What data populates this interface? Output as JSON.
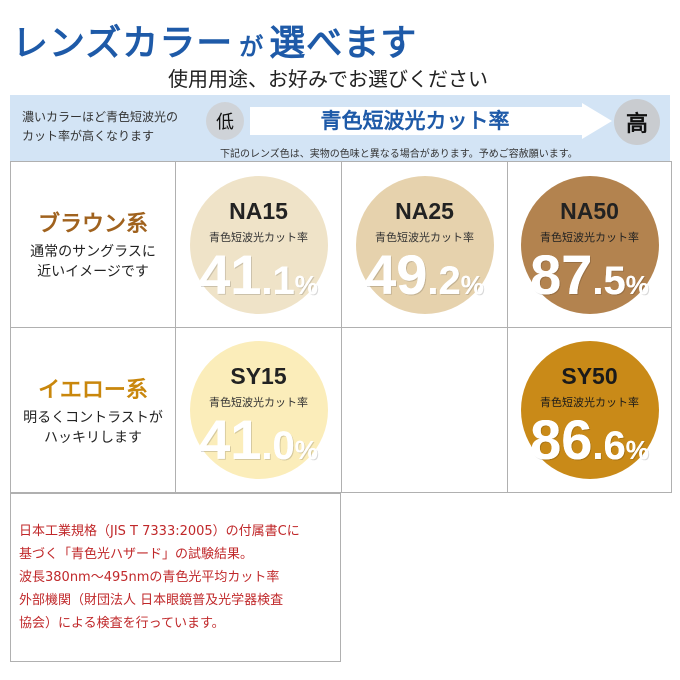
{
  "header": {
    "title_main": "レンズカラー",
    "title_particle": "が",
    "title_end": "選べます",
    "subtitle": "使用用途、お好みでお選びください"
  },
  "band": {
    "note_line1": "濃いカラーほど青色短波光の",
    "note_line2": "カット率が高くなります",
    "low_label": "低",
    "arrow_label": "青色短波光カット率",
    "high_label": "高",
    "disclaimer": "下記のレンズ色は、実物の色味と異なる場合があります。予めご容赦願います。"
  },
  "rows": [
    {
      "title": "ブラウン系",
      "title_color": "#a0621e",
      "desc_line1": "通常のサングラスに",
      "desc_line2": "近いイメージです",
      "lenses": [
        {
          "code": "NA15",
          "caption": "青色短波光カット率",
          "int": "41",
          "dec": ".1",
          "pct": "%",
          "fill": "#efe3c8",
          "code_color": "#222222",
          "cap_color": "#333333"
        },
        {
          "code": "NA25",
          "caption": "青色短波光カット率",
          "int": "49",
          "dec": ".2",
          "pct": "%",
          "fill": "#e6d2ad",
          "code_color": "#222222",
          "cap_color": "#333333"
        },
        {
          "code": "NA50",
          "caption": "青色短波光カット率",
          "int": "87",
          "dec": ".5",
          "pct": "%",
          "fill": "#b3834f",
          "code_color": "#222222",
          "cap_color": "#222222"
        }
      ]
    },
    {
      "title": "イエロー系",
      "title_color": "#c9870c",
      "desc_line1": "明るくコントラストが",
      "desc_line2": "ハッキリします",
      "lenses": [
        {
          "code": "SY15",
          "caption": "青色短波光カット率",
          "int": "41",
          "dec": ".0",
          "pct": "%",
          "fill": "#fbedba",
          "code_color": "#222222",
          "cap_color": "#333333"
        },
        null,
        {
          "code": "SY50",
          "caption": "青色短波光カット率",
          "int": "86",
          "dec": ".6",
          "pct": "%",
          "fill": "#c98a18",
          "code_color": "#1a1a1a",
          "cap_color": "#1a1a1a"
        }
      ]
    }
  ],
  "footnote": {
    "lines": [
      "日本工業規格（JIS T 7333:2005）の付属書Cに",
      "基づく「青色光ハザード」の試験結果。",
      "波長380nm～495nmの青色光平均カット率",
      "外部機関（財団法人 日本眼鏡普及光学器検査",
      "協会）による検査を行っています。"
    ]
  },
  "colors": {
    "title_blue": "#1e5aa8",
    "band_bg": "#d3e4f5",
    "footnote_red": "#c0282a"
  }
}
